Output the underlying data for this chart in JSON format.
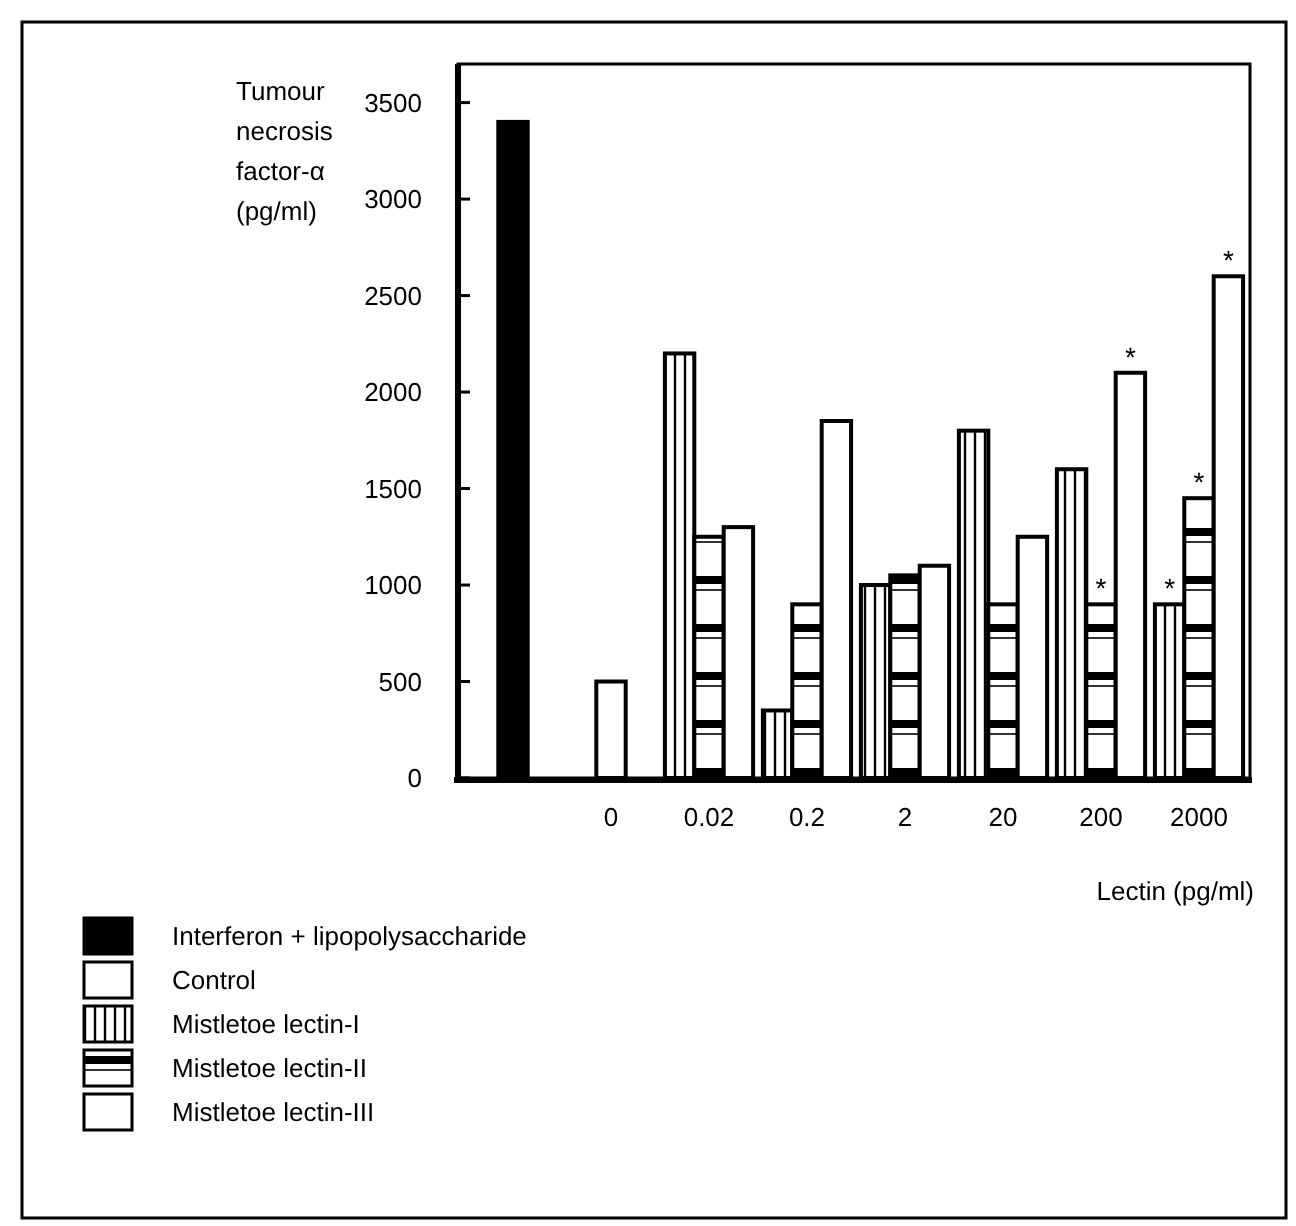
{
  "chart_data": {
    "type": "bar",
    "xlabel": "Lectin (pg/ml)",
    "ylabel": "Tumour necrosis factor-α (pg/ml)",
    "categories": [
      null,
      "0",
      "0.02",
      "0.2",
      "2",
      "20",
      "200",
      "2000"
    ],
    "series": [
      {
        "name": "Interferon + lipopolysaccharide",
        "color": "#000000",
        "values": [
          3400,
          null,
          null,
          null,
          null,
          null,
          null,
          null
        ]
      },
      {
        "name": "Control",
        "color": "#ffffff",
        "values": [
          null,
          500,
          null,
          null,
          null,
          null,
          null,
          null
        ]
      },
      {
        "name": "Mistletoe lectin-I",
        "color": "#000000",
        "values": [
          null,
          null,
          2200,
          350,
          1000,
          1800,
          1600,
          900
        ],
        "value_labels": [
          null,
          null,
          null,
          null,
          null,
          null,
          null,
          "*"
        ]
      },
      {
        "name": "Mistletoe lectin-II",
        "color": "#000000",
        "values": [
          null,
          null,
          1250,
          900,
          1050,
          900,
          900,
          1450
        ],
        "value_labels": [
          null,
          null,
          null,
          null,
          null,
          null,
          "*",
          "*"
        ]
      },
      {
        "name": "Mistletoe lectin-III",
        "color": "#ffffff",
        "values": [
          null,
          null,
          1300,
          1850,
          1100,
          1250,
          2100,
          2600
        ],
        "value_labels": [
          null,
          null,
          null,
          null,
          null,
          null,
          "*",
          "*"
        ]
      }
    ],
    "ylim": [
      0,
      3700
    ],
    "yticks": [
      0,
      500,
      1000,
      1500,
      2000,
      2500,
      3000,
      3500
    ],
    "grid": false,
    "legend": "bottom left"
  }
}
